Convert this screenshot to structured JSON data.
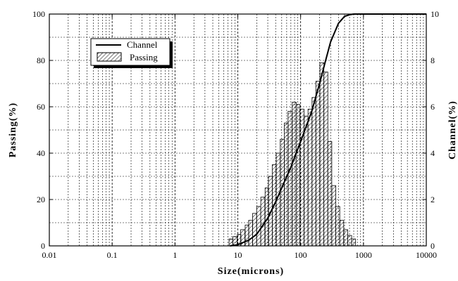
{
  "chart_data": {
    "type": "bar+line",
    "xscale": "log",
    "xlim": [
      0.01,
      10000
    ],
    "xticks": [
      "0.01",
      "0.1",
      "1",
      "10",
      "100",
      "1000",
      "10000"
    ],
    "xlabel": "Size(microns)",
    "ylabel_left": "Passing(%)",
    "ylabel_right": "Channel(%)",
    "ylim_left": [
      0,
      100
    ],
    "ylim_right": [
      0,
      10
    ],
    "yticks_left": [
      "0",
      "20",
      "40",
      "60",
      "80",
      "100"
    ],
    "yticks_right": [
      "0",
      "2",
      "4",
      "6",
      "8",
      "10"
    ],
    "grid": true,
    "legend_position": "top-left",
    "series": [
      {
        "name": "Channel",
        "type": "line",
        "axis": "left",
        "x": [
          7.5,
          10,
          15,
          20,
          30,
          40,
          50,
          70,
          100,
          150,
          200,
          250,
          300,
          400,
          500,
          600,
          700,
          800
        ],
        "values": [
          0,
          0.5,
          2.5,
          5,
          12,
          19,
          25,
          34,
          45,
          58,
          70,
          80,
          88,
          96,
          99,
          99.7,
          100,
          100
        ]
      },
      {
        "name": "Passing",
        "type": "bar",
        "axis": "right",
        "x": [
          7.8,
          9.0,
          10.5,
          12,
          14,
          16,
          18.5,
          21.5,
          25,
          29,
          33,
          38,
          44,
          51,
          59,
          68,
          79,
          91,
          105,
          122,
          141,
          163,
          188,
          218,
          252,
          291,
          337,
          390,
          451,
          521,
          603,
          697
        ],
        "values": [
          0.3,
          0.4,
          0.5,
          0.7,
          0.9,
          1.1,
          1.4,
          1.7,
          2.1,
          2.5,
          3.0,
          3.5,
          4.0,
          4.6,
          5.3,
          5.8,
          6.2,
          6.1,
          5.9,
          5.6,
          5.9,
          6.4,
          7.1,
          7.9,
          7.5,
          4.5,
          2.6,
          1.7,
          1.1,
          0.7,
          0.45,
          0.3
        ]
      }
    ]
  }
}
